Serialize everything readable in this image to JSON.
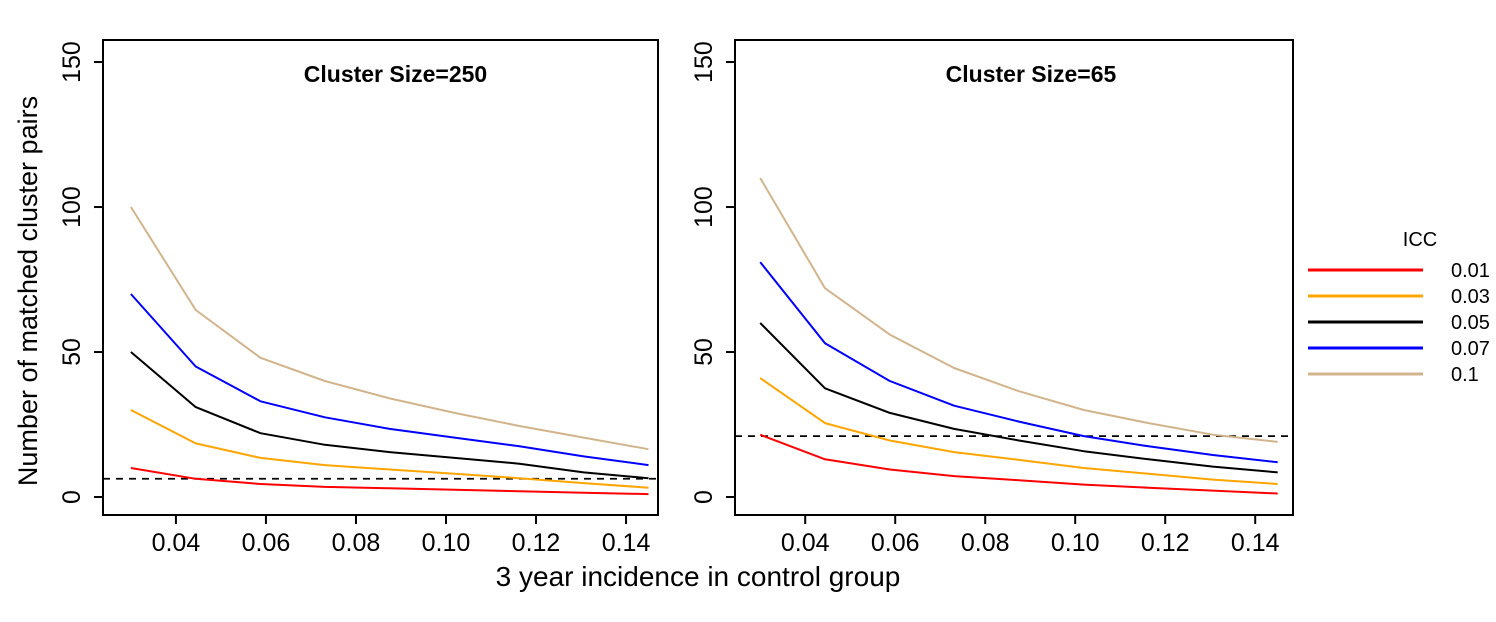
{
  "figure": {
    "x_axis_label": "3 year incidence in control group",
    "y_axis_label": "Number of matched cluster pairs"
  },
  "legend": {
    "title": "ICC",
    "items": [
      {
        "label": "0.01",
        "color": "#FF0000"
      },
      {
        "label": "0.03",
        "color": "#FFA500"
      },
      {
        "label": "0.05",
        "color": "#000000"
      },
      {
        "label": "0.07",
        "color": "#0000FF"
      },
      {
        "label": "0.1",
        "color": "#D2B48C"
      }
    ]
  },
  "chart_data": [
    {
      "type": "line",
      "title": "Cluster Size=250",
      "xlabel": "3 year incidence in control group",
      "ylabel": "Number of matched cluster pairs",
      "grid": false,
      "legend_position": "right-outside",
      "x": [
        0.03,
        0.0444,
        0.0588,
        0.0731,
        0.0875,
        0.1019,
        0.1163,
        0.1306,
        0.145
      ],
      "series": [
        {
          "name": "0.01",
          "color": "#FF0000",
          "values": [
            10,
            6.3,
            4.5,
            3.5,
            3,
            2.5,
            2,
            1.5,
            1
          ]
        },
        {
          "name": "0.03",
          "color": "#FFA500",
          "values": [
            30,
            18.5,
            13.5,
            11,
            9.5,
            8,
            6.5,
            4.8,
            3.2
          ]
        },
        {
          "name": "0.05",
          "color": "#000000",
          "values": [
            50,
            31,
            22,
            18,
            15.5,
            13.5,
            11.5,
            8.5,
            6.5
          ]
        },
        {
          "name": "0.07",
          "color": "#0000FF",
          "values": [
            70,
            45,
            33,
            27.5,
            23.5,
            20.5,
            17.5,
            14,
            11
          ]
        },
        {
          "name": "0.1",
          "color": "#D2B48C",
          "values": [
            100,
            64.5,
            48,
            40,
            34,
            29,
            24.5,
            20.5,
            16.5
          ]
        }
      ],
      "dashed_reference_y": 6.3,
      "x_ticks": [
        0.04,
        0.06,
        0.08,
        0.1,
        0.12,
        0.14
      ],
      "x_tick_labels": [
        "0.04",
        "0.06",
        "0.08",
        "0.10",
        "0.12",
        "0.14"
      ],
      "y_ticks": [
        0,
        50,
        100,
        150
      ],
      "y_tick_labels": [
        "0",
        "50",
        "100",
        "150"
      ],
      "xlim": [
        0.0238,
        0.1471
      ],
      "ylim": [
        -6.2,
        157.6
      ]
    },
    {
      "type": "line",
      "title": "Cluster Size=65",
      "xlabel": "3 year incidence in control group",
      "ylabel": "Number of matched cluster pairs",
      "grid": false,
      "legend_position": "right-outside",
      "x": [
        0.03,
        0.0444,
        0.0588,
        0.0731,
        0.0875,
        0.1019,
        0.1163,
        0.1306,
        0.145
      ],
      "series": [
        {
          "name": "0.01",
          "color": "#FF0000",
          "values": [
            21.5,
            13,
            9.5,
            7.2,
            5.8,
            4.3,
            3.2,
            2.2,
            1.2
          ]
        },
        {
          "name": "0.03",
          "color": "#FFA500",
          "values": [
            41,
            25.5,
            19.5,
            15.5,
            12.8,
            10,
            8,
            6,
            4.5
          ]
        },
        {
          "name": "0.05",
          "color": "#000000",
          "values": [
            60,
            37.5,
            29,
            23.5,
            19.5,
            15.8,
            13,
            10.5,
            8.5
          ]
        },
        {
          "name": "0.07",
          "color": "#0000FF",
          "values": [
            81,
            53,
            40,
            31.5,
            26,
            21,
            17.5,
            14.5,
            12
          ]
        },
        {
          "name": "0.1",
          "color": "#D2B48C",
          "values": [
            110,
            72,
            56,
            44.5,
            36.5,
            30,
            25.5,
            21.5,
            19
          ]
        }
      ],
      "dashed_reference_y": 21,
      "x_ticks": [
        0.04,
        0.06,
        0.08,
        0.1,
        0.12,
        0.14
      ],
      "x_tick_labels": [
        "0.04",
        "0.06",
        "0.08",
        "0.10",
        "0.12",
        "0.14"
      ],
      "y_ticks": [
        0,
        50,
        100,
        150
      ],
      "y_tick_labels": [
        "0",
        "50",
        "100",
        "150"
      ],
      "xlim": [
        0.0244,
        0.1484
      ],
      "ylim": [
        -6.2,
        157.6
      ]
    }
  ]
}
